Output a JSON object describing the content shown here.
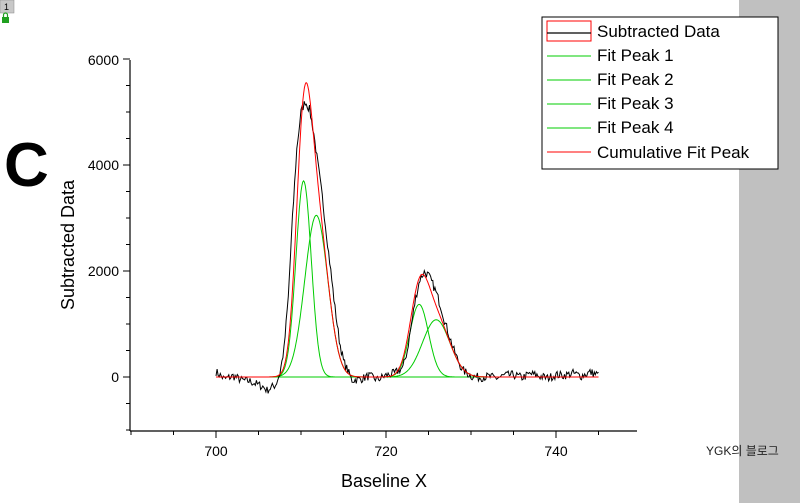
{
  "window": {
    "layer_number": "1",
    "panel_label": "C",
    "watermark": "YGK의 블로그"
  },
  "colors": {
    "data": "#000000",
    "fit_peak": "#00cc00",
    "cumulative": "#ff0000",
    "side_panel": "#c0c0c0"
  },
  "chart_data": {
    "type": "line",
    "xlabel": "Baseline X",
    "ylabel": "Subtracted Data",
    "xlim": [
      690,
      745
    ],
    "ylim": [
      -1000,
      6000
    ],
    "xticks": [
      "700",
      "720",
      "740"
    ],
    "yticks": [
      "0",
      "2000",
      "4000",
      "6000"
    ],
    "legend_position": "top-right",
    "series": [
      {
        "name": "Subtracted Data",
        "color": "#000000",
        "x": [
          700,
          701,
          702,
          703,
          704,
          705,
          705.5,
          706,
          706.5,
          707,
          707.5,
          708,
          708.5,
          709,
          709.5,
          710,
          710.5,
          711,
          711.5,
          712,
          712.5,
          713,
          713.5,
          714,
          714.5,
          715,
          716,
          717,
          718,
          719,
          720,
          721,
          722,
          722.5,
          723,
          723.5,
          724,
          724.5,
          725,
          725.5,
          726,
          726.5,
          727,
          727.5,
          728,
          728.5,
          729,
          730,
          731,
          732,
          733,
          734,
          735,
          736,
          737,
          738,
          739,
          740,
          741,
          742,
          743,
          744,
          745
        ],
        "y": [
          100,
          -40,
          20,
          -60,
          -80,
          -150,
          -180,
          -250,
          -200,
          -150,
          60,
          520,
          1500,
          3000,
          4300,
          5000,
          5200,
          5050,
          4600,
          4000,
          3400,
          2700,
          2000,
          1300,
          700,
          300,
          -60,
          -40,
          20,
          -50,
          30,
          70,
          180,
          500,
          1000,
          1500,
          1850,
          1980,
          1920,
          1750,
          1550,
          1300,
          1000,
          750,
          500,
          300,
          130,
          20,
          -10,
          10,
          -20,
          30,
          40,
          -10,
          60,
          20,
          -20,
          40,
          30,
          70,
          20,
          90,
          40
        ]
      },
      {
        "name": "Fit Peak 1",
        "color": "#00cc00",
        "function": "gaussian",
        "center": 710.3,
        "amplitude": 3700,
        "sigma": 0.9
      },
      {
        "name": "Fit Peak 2",
        "color": "#00cc00",
        "function": "gaussian",
        "center": 711.8,
        "amplitude": 3050,
        "sigma": 1.35
      },
      {
        "name": "Fit Peak 3",
        "color": "#00cc00",
        "function": "gaussian",
        "center": 723.9,
        "amplitude": 1370,
        "sigma": 1.1
      },
      {
        "name": "Fit Peak 4",
        "color": "#00cc00",
        "function": "gaussian",
        "center": 725.9,
        "amplitude": 1080,
        "sigma": 1.6
      },
      {
        "name": "Cumulative Fit Peak",
        "color": "#ff0000",
        "function": "sum_of_fit_peaks",
        "x_range": [
          700,
          745
        ]
      }
    ]
  }
}
